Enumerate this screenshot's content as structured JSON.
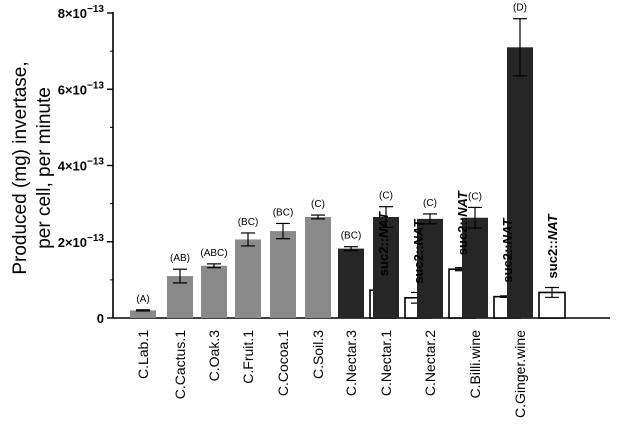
{
  "chart_data": {
    "type": "bar",
    "title": "",
    "ylabel_lines": [
      "Produced (mg) invertase,",
      "per cell, per minute"
    ],
    "ylim": [
      0,
      8e-13
    ],
    "yticks": [
      {
        "value": 0,
        "label": "0"
      },
      {
        "value": 2e-13,
        "label": "2×10",
        "exp": "−13"
      },
      {
        "value": 4e-13,
        "label": "4×10",
        "exp": "−13"
      },
      {
        "value": 6e-13,
        "label": "6×10",
        "exp": "−13"
      },
      {
        "value": 8e-13,
        "label": "8×10",
        "exp": "−13"
      }
    ],
    "colors": {
      "wildtype_light": "#8a8a8a",
      "wildtype_dark": "#262626",
      "mutant": "#ffffff",
      "edge": "#000000"
    },
    "mutant_label_prefix": "suc2::",
    "mutant_label_italic": "NAT",
    "categories": [
      {
        "name": "C.Lab.1",
        "value": 2e-14,
        "err": 1.5e-15,
        "group": "(A)",
        "shade": "light"
      },
      {
        "name": "C.Cactus.1",
        "value": 1.1e-13,
        "err": 1.8e-14,
        "group": "(AB)",
        "shade": "light"
      },
      {
        "name": "C.Oak.3",
        "value": 1.37e-13,
        "err": 5e-15,
        "group": "(ABC)",
        "shade": "light"
      },
      {
        "name": "C.Fruit.1",
        "value": 2.06e-13,
        "err": 1.7e-14,
        "group": "(BC)",
        "shade": "light"
      },
      {
        "name": "C.Cocoa.1",
        "value": 2.28e-13,
        "err": 2e-14,
        "group": "(BC)",
        "shade": "light"
      },
      {
        "name": "C.Soil.3",
        "value": 2.65e-13,
        "err": 5e-15,
        "group": "(C)",
        "shade": "light"
      },
      {
        "name": "C.Nectar.3",
        "value": 1.82e-13,
        "err": 5e-15,
        "group": "(BC)",
        "shade": "dark",
        "mutant": 7.3e-14,
        "mutant_err": 2.2e-14
      },
      {
        "name": "C.Nectar.1",
        "value": 2.65e-13,
        "err": 2.7e-14,
        "group": "(C)",
        "shade": "dark",
        "mutant": 5.3e-14,
        "mutant_err": 1.4e-14
      },
      {
        "name": "C.Nectar.2",
        "value": 2.6e-13,
        "err": 1.3e-14,
        "group": "(C)",
        "shade": "dark",
        "mutant": 1.28e-13,
        "mutant_err": 4e-15
      },
      {
        "name": "C.Billi.wine",
        "value": 2.63e-13,
        "err": 2.7e-14,
        "group": "(C)",
        "shade": "dark",
        "mutant": 5.6e-14,
        "mutant_err": 2e-15
      },
      {
        "name": "C.Ginger.wine",
        "value": 7.1e-13,
        "err": 7.5e-14,
        "group": "(D)",
        "shade": "dark",
        "mutant": 6.7e-14,
        "mutant_err": 1.3e-14
      }
    ]
  }
}
